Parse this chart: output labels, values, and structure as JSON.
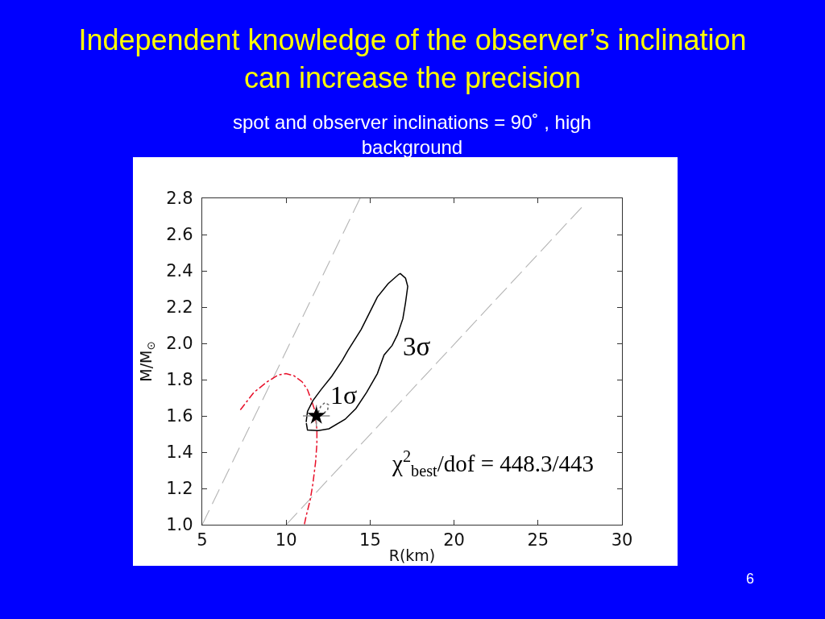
{
  "chart_data": {
    "type": "line",
    "title": "Independent knowledge of the observer’s inclination can increase the precision",
    "subtitle": "spot and observer inclinations = 90˚ , high background",
    "xlabel": "R(km)",
    "ylabel": "M/M$_{⊙}$",
    "xlim": [
      5,
      30
    ],
    "ylim": [
      1.0,
      2.8
    ],
    "xticks": [
      5,
      10,
      15,
      20,
      25,
      30
    ],
    "yticks": [
      {
        "value": 1.0,
        "label": "1.0"
      },
      1.2,
      1.4,
      1.6,
      1.8,
      {
        "value": 2.0,
        "label": "2.0"
      },
      2.2,
      2.4,
      2.6,
      2.8
    ],
    "grid": false,
    "annotations": [
      "3σ",
      "1σ",
      "χ$^{2}$$_{best}$/dof = 448.3/443",
      "6"
    ],
    "series": [
      {
        "color": "#b4b4b4",
        "line_style": "dashed",
        "marker": "none",
        "x": [
          5.0,
          14.4
        ],
        "values": [
          1.0,
          2.8
        ]
      },
      {
        "color": "#b4b4b4",
        "line_style": "dashed",
        "marker": "none",
        "x": [
          10.0,
          27.6
        ],
        "values": [
          1.0,
          2.75
        ]
      },
      {
        "color": "#e8102a",
        "line_style": "dashdot",
        "marker": "none",
        "x": [
          7.27,
          8.07,
          8.87,
          9.51,
          9.99,
          10.47,
          10.95,
          11.27,
          11.51,
          11.67,
          11.75,
          11.83,
          11.83,
          11.75,
          11.59,
          11.43,
          11.19,
          11.08
        ],
        "values": [
          1.633,
          1.729,
          1.788,
          1.825,
          1.833,
          1.821,
          1.788,
          1.744,
          1.684,
          1.64,
          1.596,
          1.522,
          1.448,
          1.344,
          1.225,
          1.136,
          1.048,
          1.0
        ]
      },
      {
        "color": "#000000",
        "line_style": "solid",
        "marker": "none",
        "x": [
          11.19,
          11.27,
          11.59,
          12.07,
          12.71,
          13.35,
          13.67,
          14.47,
          14.95,
          15.43,
          16.07,
          16.71,
          16.8,
          17.11,
          17.24,
          17.11,
          16.95,
          16.63,
          16.31,
          15.83,
          15.43,
          14.79,
          14.15,
          13.51,
          12.55,
          11.91,
          11.27,
          11.2
        ],
        "values": [
          1.566,
          1.625,
          1.684,
          1.744,
          1.818,
          1.907,
          1.959,
          2.077,
          2.166,
          2.255,
          2.329,
          2.381,
          2.385,
          2.359,
          2.314,
          2.225,
          2.136,
          2.048,
          1.988,
          1.936,
          1.833,
          1.729,
          1.64,
          1.581,
          1.529,
          1.519,
          1.522,
          1.56
        ]
      },
      {
        "color": "#606060",
        "line_style": "dotted",
        "marker": "none",
        "x": [
          11.91,
          12.07,
          12.31,
          12.52,
          12.47,
          12.15,
          11.95
        ],
        "values": [
          1.618,
          1.655,
          1.673,
          1.662,
          1.633,
          1.608,
          1.615
        ]
      },
      {
        "type": "scatter",
        "color": "#000000",
        "marker": "star",
        "x": [
          11.8
        ],
        "values": [
          1.6
        ],
        "errors": [
          0.06
        ],
        "xerrors": [
          0.8
        ]
      }
    ]
  }
}
